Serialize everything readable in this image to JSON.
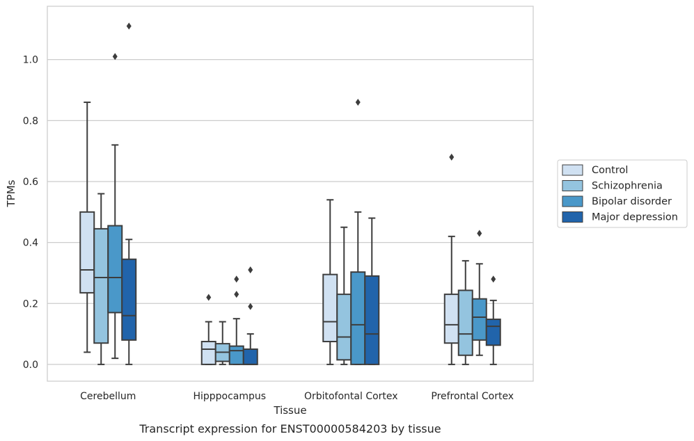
{
  "chart_data": {
    "type": "box",
    "xlabel": "Tissue",
    "ylabel": "TPMs",
    "caption": "Transcript expression for ENST00000584203 by tissue",
    "ylim": [
      -0.055,
      1.175
    ],
    "yticks": [
      "0.0",
      "0.2",
      "0.4",
      "0.6",
      "0.8",
      "1.0"
    ],
    "grid": "horizontal",
    "legend_position": "right",
    "categories": [
      "Cerebellum",
      "Hipppocampus",
      "Orbitofontal Cortex",
      "Prefrontal Cortex"
    ],
    "series": [
      {
        "name": "Control",
        "color": "#d0e1f2",
        "boxes": [
          {
            "whislo": 0.04,
            "q1": 0.235,
            "med": 0.31,
            "q3": 0.5,
            "whishi": 0.86,
            "fliers": []
          },
          {
            "whislo": 0.0,
            "q1": 0.0,
            "med": 0.05,
            "q3": 0.075,
            "whishi": 0.14,
            "fliers": [
              0.22
            ]
          },
          {
            "whislo": 0.0,
            "q1": 0.075,
            "med": 0.14,
            "q3": 0.295,
            "whishi": 0.54,
            "fliers": []
          },
          {
            "whislo": 0.0,
            "q1": 0.07,
            "med": 0.13,
            "q3": 0.23,
            "whishi": 0.42,
            "fliers": [
              0.68
            ]
          }
        ]
      },
      {
        "name": "Schizophrenia",
        "color": "#94c4df",
        "boxes": [
          {
            "whislo": 0.0,
            "q1": 0.07,
            "med": 0.285,
            "q3": 0.445,
            "whishi": 0.56,
            "fliers": []
          },
          {
            "whislo": 0.0,
            "q1": 0.01,
            "med": 0.04,
            "q3": 0.068,
            "whishi": 0.14,
            "fliers": []
          },
          {
            "whislo": 0.0,
            "q1": 0.015,
            "med": 0.09,
            "q3": 0.23,
            "whishi": 0.45,
            "fliers": []
          },
          {
            "whislo": 0.0,
            "q1": 0.03,
            "med": 0.1,
            "q3": 0.243,
            "whishi": 0.34,
            "fliers": []
          }
        ]
      },
      {
        "name": "Bipolar disorder",
        "color": "#4a98c9",
        "boxes": [
          {
            "whislo": 0.02,
            "q1": 0.17,
            "med": 0.285,
            "q3": 0.455,
            "whishi": 0.72,
            "fliers": [
              1.01
            ]
          },
          {
            "whislo": 0.0,
            "q1": 0.0,
            "med": 0.045,
            "q3": 0.06,
            "whishi": 0.15,
            "fliers": [
              0.23,
              0.28
            ]
          },
          {
            "whislo": 0.0,
            "q1": 0.0,
            "med": 0.13,
            "q3": 0.303,
            "whishi": 0.5,
            "fliers": [
              0.86
            ]
          },
          {
            "whislo": 0.03,
            "q1": 0.08,
            "med": 0.155,
            "q3": 0.215,
            "whishi": 0.33,
            "fliers": [
              0.43
            ]
          }
        ]
      },
      {
        "name": "Major depression",
        "color": "#2164ab",
        "boxes": [
          {
            "whislo": 0.0,
            "q1": 0.08,
            "med": 0.16,
            "q3": 0.345,
            "whishi": 0.41,
            "fliers": [
              1.11
            ]
          },
          {
            "whislo": 0.0,
            "q1": 0.0,
            "med": 0.0,
            "q3": 0.05,
            "whishi": 0.1,
            "fliers": [
              0.19,
              0.31
            ]
          },
          {
            "whislo": 0.0,
            "q1": 0.0,
            "med": 0.1,
            "q3": 0.29,
            "whishi": 0.48,
            "fliers": []
          },
          {
            "whislo": 0.0,
            "q1": 0.063,
            "med": 0.125,
            "q3": 0.148,
            "whishi": 0.21,
            "fliers": [
              0.28
            ]
          }
        ]
      }
    ]
  }
}
